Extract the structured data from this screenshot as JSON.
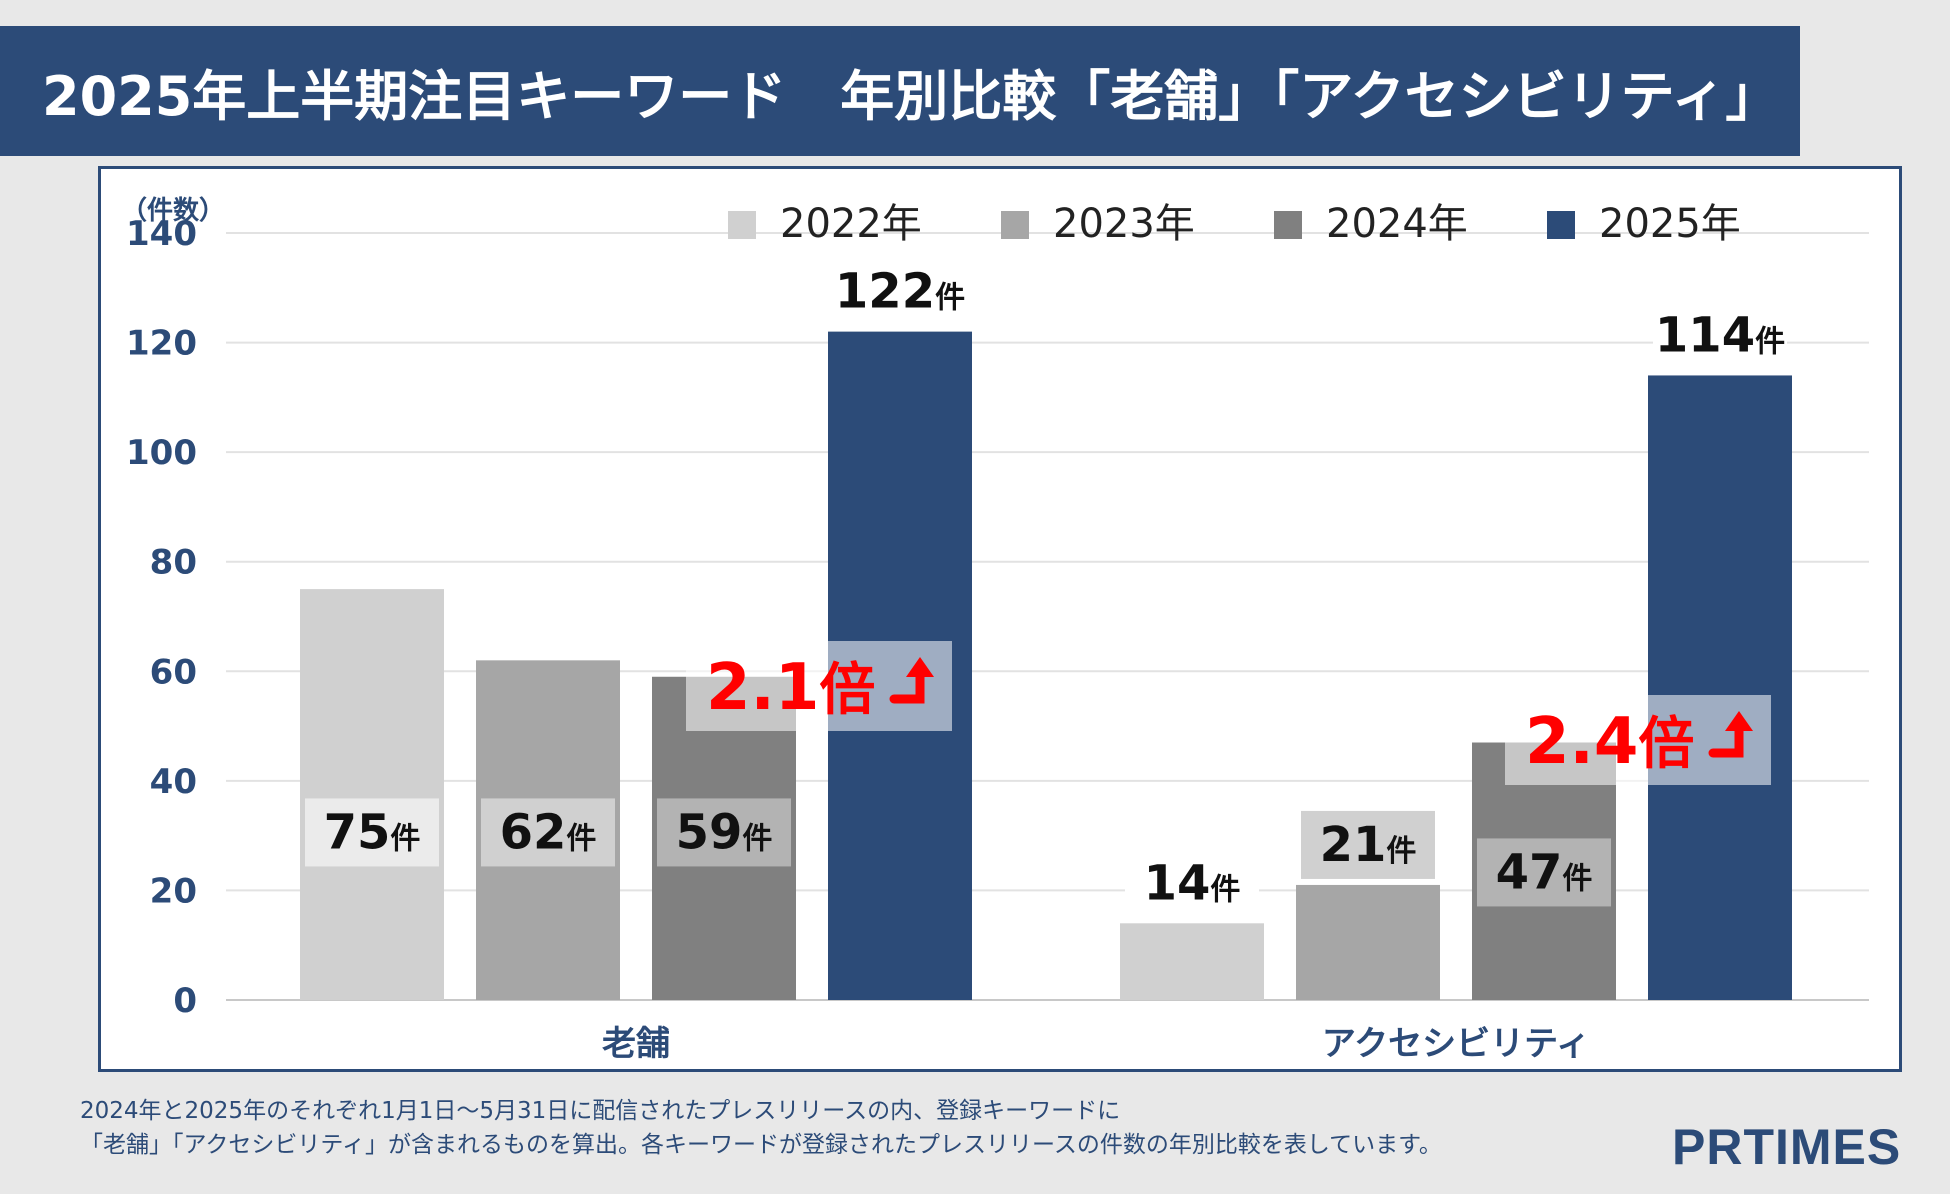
{
  "title": "2025年上半期注目キーワード　年別比較「老舗」「アクセシビリティ」",
  "footnote": {
    "line1": "2024年と2025年のそれぞれ1月1日～5月31日に配信されたプレスリリースの内、登録キーワードに",
    "line2": "「老舗」「アクセシビリティ」が含まれるものを算出。各キーワードが登録されたプレスリリースの件数の年別比較を表しています。"
  },
  "logo": "PRTIMES",
  "colors": {
    "2022": "#d0d0d0",
    "2023": "#a6a6a6",
    "2024": "#808080",
    "2025": "#2c4b78",
    "axis_text": "#2c4b78",
    "ratio": "#ff0000"
  },
  "chart_data": {
    "type": "bar",
    "ylabel": "（件数）",
    "ylim": [
      0,
      140
    ],
    "yticks": [
      0,
      20,
      40,
      60,
      80,
      100,
      120,
      140
    ],
    "categories": [
      "老舗",
      "アクセシビリティ"
    ],
    "series": [
      {
        "name": "2022年",
        "values": [
          75,
          14
        ]
      },
      {
        "name": "2023年",
        "values": [
          62,
          21
        ]
      },
      {
        "name": "2024年",
        "values": [
          59,
          47
        ]
      },
      {
        "name": "2025年",
        "values": [
          122,
          114
        ]
      }
    ],
    "unit": "件",
    "legend_position": "top-right",
    "grid": true,
    "annotations": [
      {
        "category": "老舗",
        "ratio": "2.1",
        "unit": "倍"
      },
      {
        "category": "アクセシビリティ",
        "ratio": "2.4",
        "unit": "倍"
      }
    ]
  }
}
